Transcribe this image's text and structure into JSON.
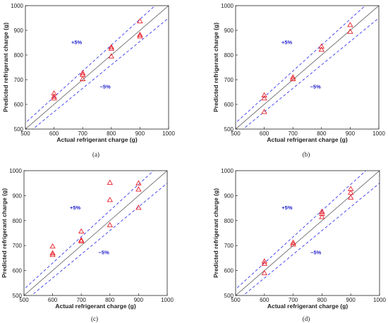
{
  "chart_data": [
    {
      "type": "scatter",
      "panel": "(a)",
      "xlabel": "Actual refrigerant charge (g)",
      "ylabel": "Predicted refrigerant charge (g)",
      "xlim": [
        500,
        1000
      ],
      "ylim": [
        500,
        1000
      ],
      "xticks": [
        500,
        600,
        700,
        800,
        900,
        1000
      ],
      "yticks": [
        500,
        600,
        700,
        800,
        900,
        1000
      ],
      "reference_lines": [
        "y = x",
        "y = 1.05x",
        "y = 0.95x"
      ],
      "annotations": [
        "+5%",
        "−5%"
      ],
      "points": [
        [
          600,
          645
        ],
        [
          600,
          632
        ],
        [
          600,
          625
        ],
        [
          700,
          727
        ],
        [
          700,
          720
        ],
        [
          700,
          703
        ],
        [
          800,
          832
        ],
        [
          800,
          826
        ],
        [
          800,
          795
        ],
        [
          900,
          937
        ],
        [
          900,
          882
        ],
        [
          900,
          876
        ]
      ]
    },
    {
      "type": "scatter",
      "panel": "(b)",
      "xlabel": "Actual refrigerant charge (g)",
      "ylabel": "Predicted refrigerant charge (g)",
      "xlim": [
        500,
        1000
      ],
      "ylim": [
        500,
        1000
      ],
      "xticks": [
        500,
        600,
        700,
        800,
        900,
        1000
      ],
      "yticks": [
        500,
        600,
        700,
        800,
        900,
        1000
      ],
      "reference_lines": [
        "y = x",
        "y = 1.05x",
        "y = 0.95x"
      ],
      "annotations": [
        "+5%",
        "−5%"
      ],
      "points": [
        [
          600,
          637
        ],
        [
          600,
          625
        ],
        [
          600,
          570
        ],
        [
          700,
          710
        ],
        [
          700,
          703
        ],
        [
          800,
          835
        ],
        [
          800,
          822
        ],
        [
          900,
          922
        ],
        [
          900,
          895
        ]
      ]
    },
    {
      "type": "scatter",
      "panel": "(c)",
      "xlabel": "Actual refrigerant charge (g)",
      "ylabel": "Predicted refrigerant charge (g)",
      "xlim": [
        500,
        1000
      ],
      "ylim": [
        500,
        1000
      ],
      "xticks": [
        500,
        600,
        700,
        800,
        900,
        1000
      ],
      "yticks": [
        500,
        600,
        700,
        800,
        900,
        1000
      ],
      "reference_lines": [
        "y = x",
        "y = 1.05x",
        "y = 0.95x"
      ],
      "annotations": [
        "+5%",
        "−5%"
      ],
      "points": [
        [
          600,
          697
        ],
        [
          600,
          670
        ],
        [
          600,
          663
        ],
        [
          700,
          757
        ],
        [
          700,
          722
        ],
        [
          700,
          718
        ],
        [
          800,
          952
        ],
        [
          800,
          883
        ],
        [
          800,
          782
        ],
        [
          900,
          950
        ],
        [
          900,
          925
        ],
        [
          900,
          852
        ]
      ]
    },
    {
      "type": "scatter",
      "panel": "(d)",
      "xlabel": "Actual refrigerant charge (g)",
      "ylabel": "Predicted refrigerant charge (g)",
      "xlim": [
        500,
        1000
      ],
      "ylim": [
        500,
        1000
      ],
      "xticks": [
        500,
        600,
        700,
        800,
        900,
        1000
      ],
      "yticks": [
        500,
        600,
        700,
        800,
        900,
        1000
      ],
      "reference_lines": [
        "y = x",
        "y = 1.05x",
        "y = 0.95x"
      ],
      "annotations": [
        "+5%",
        "−5%"
      ],
      "points": [
        [
          600,
          637
        ],
        [
          600,
          628
        ],
        [
          600,
          590
        ],
        [
          700,
          712
        ],
        [
          700,
          705
        ],
        [
          800,
          836
        ],
        [
          800,
          828
        ],
        [
          800,
          815
        ],
        [
          900,
          927
        ],
        [
          900,
          912
        ],
        [
          900,
          893
        ]
      ]
    }
  ],
  "colors": {
    "marker": "#e8202a",
    "identity_line": "#6e6e6e",
    "band_lines": "#3a3af0",
    "band_label": "#1a1acc",
    "axes": "#222222"
  }
}
